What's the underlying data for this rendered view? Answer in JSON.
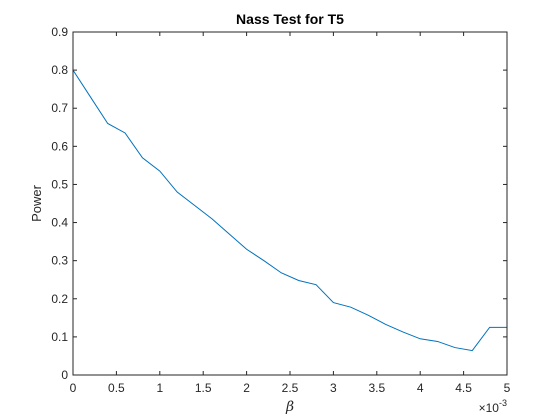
{
  "chart_data": {
    "type": "line",
    "title": "Nass Test for T5",
    "xlabel": "β",
    "ylabel": "Power",
    "x_exponent_label": "×10",
    "x_exponent_power": "-3",
    "xlim": [
      0,
      0.005
    ],
    "ylim": [
      0,
      0.9
    ],
    "xticks": [
      0,
      0.0005,
      0.001,
      0.0015,
      0.002,
      0.0025,
      0.003,
      0.0035,
      0.004,
      0.0045,
      0.005
    ],
    "xtick_labels": [
      "0",
      "0.5",
      "1",
      "1.5",
      "2",
      "2.5",
      "3",
      "3.5",
      "4",
      "4.5",
      "5"
    ],
    "yticks": [
      0,
      0.1,
      0.2,
      0.3,
      0.4,
      0.5,
      0.6,
      0.7,
      0.8,
      0.9
    ],
    "ytick_labels": [
      "0",
      "0.1",
      "0.2",
      "0.3",
      "0.4",
      "0.5",
      "0.6",
      "0.7",
      "0.8",
      "0.9"
    ],
    "grid": false,
    "line_color": "#0072bd",
    "series": [
      {
        "x": [
          0,
          0.0002,
          0.0004,
          0.0006,
          0.0008,
          0.001,
          0.0012,
          0.0014,
          0.0016,
          0.0018,
          0.002,
          0.0022,
          0.0024,
          0.0026,
          0.0028,
          0.003,
          0.0032,
          0.0034,
          0.0036,
          0.0038,
          0.004,
          0.0042,
          0.0044,
          0.0046,
          0.0048,
          0.005
        ],
        "values": [
          0.8,
          0.73,
          0.66,
          0.635,
          0.57,
          0.535,
          0.48,
          0.445,
          0.41,
          0.37,
          0.33,
          0.3,
          0.268,
          0.248,
          0.237,
          0.19,
          0.178,
          0.157,
          0.133,
          0.113,
          0.095,
          0.088,
          0.072,
          0.064,
          0.125,
          0.125
        ]
      }
    ]
  }
}
